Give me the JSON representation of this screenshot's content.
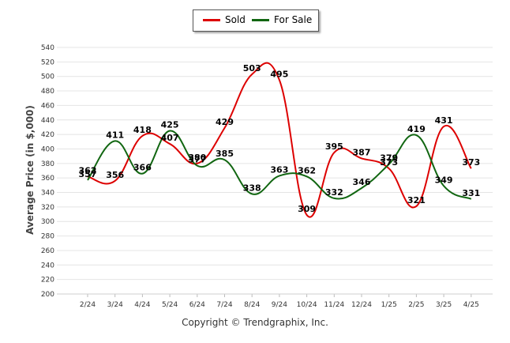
{
  "legend": {
    "sold_label": "Sold",
    "for_sale_label": "For Sale"
  },
  "copyright": "Copyright © Trendgraphix, Inc.",
  "chart_data": {
    "type": "line",
    "ylabel": "Average Price (in $,000)",
    "xlabel": "",
    "ylim": [
      200,
      540
    ],
    "ytick_step": 20,
    "grid": true,
    "legend_position": "top-center",
    "categories": [
      "2/24",
      "3/24",
      "4/24",
      "5/24",
      "6/24",
      "7/24",
      "8/24",
      "9/24",
      "10/24",
      "11/24",
      "12/24",
      "1/25",
      "2/25",
      "3/25",
      "4/25"
    ],
    "series": [
      {
        "name": "Sold",
        "color": "#dd0000",
        "values": [
          362,
          356,
          418,
          407,
          380,
          429,
          503,
          495,
          309,
          395,
          387,
          373,
          321,
          431,
          373
        ]
      },
      {
        "name": "For Sale",
        "color": "#116611",
        "values": [
          357,
          411,
          366,
          425,
          377,
          385,
          338,
          363,
          362,
          332,
          346,
          379,
          419,
          349,
          331
        ]
      }
    ]
  }
}
